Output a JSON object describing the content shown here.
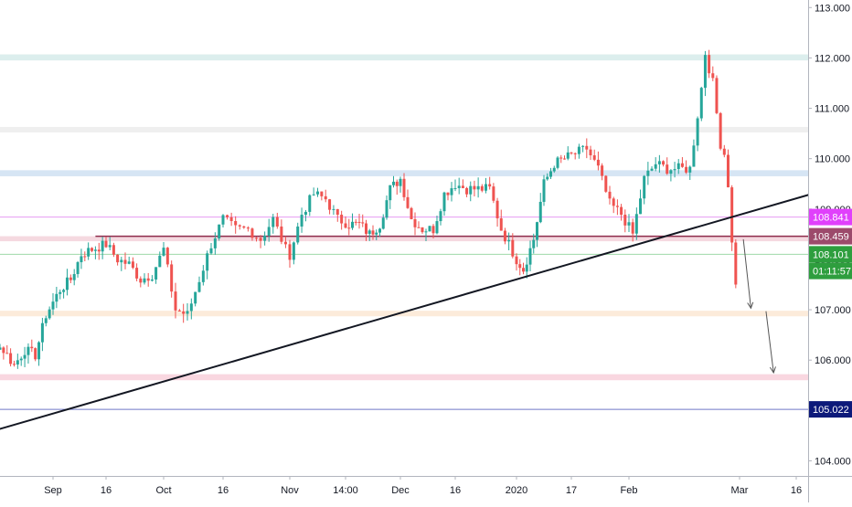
{
  "chart_data": {
    "type": "candlestick",
    "title": "",
    "y_axis": {
      "side": "right",
      "range": [
        103.7,
        113.15
      ],
      "ticks": [
        "104.000",
        "105.000",
        "106.000",
        "107.000",
        "108.000",
        "109.000",
        "110.000",
        "111.000",
        "112.000",
        "113.000"
      ],
      "tick_values": [
        104,
        105,
        106,
        107,
        108,
        109,
        110,
        111,
        112,
        113
      ]
    },
    "x_axis": {
      "ticks": [
        {
          "label": "Sep",
          "date": "2019-09-01"
        },
        {
          "label": "16",
          "date": "2019-09-16"
        },
        {
          "label": "Oct",
          "date": "2019-10-01"
        },
        {
          "label": "16",
          "date": "2019-10-16"
        },
        {
          "label": "Nov",
          "date": "2019-11-01"
        },
        {
          "label": "14:00",
          "date": "2019-11-15"
        },
        {
          "label": "Dec",
          "date": "2019-12-01"
        },
        {
          "label": "16",
          "date": "2019-12-16"
        },
        {
          "label": "2020",
          "date": "2020-01-01"
        },
        {
          "label": "17",
          "date": "2020-01-17"
        },
        {
          "label": "Feb",
          "date": "2020-02-01"
        },
        {
          "label": "Mar",
          "date": "2020-03-01"
        },
        {
          "label": "16",
          "date": "2020-03-16"
        }
      ]
    },
    "grid": false,
    "colors": {
      "up": "#26a69a",
      "down": "#ef5350",
      "trendline": "#131722",
      "resistance": "#8e2c4c",
      "arrow": "#555555",
      "axis_text": "#131722",
      "axis_border": "#b2b5be"
    },
    "price_labels": [
      {
        "value": 108.841,
        "text": "108.841",
        "color": "#e040fb",
        "text_color": "#ffffff"
      },
      {
        "value": 108.459,
        "text": "108.459",
        "color": "#9c4a6b",
        "text_color": "#ffffff"
      },
      {
        "value": 108.101,
        "text": "108.101",
        "color": "#2e9e3e",
        "text_color": "#ffffff"
      },
      {
        "value": 107.77,
        "text": "01:11:57",
        "color": "#2e9e3e",
        "text_color": "#ffffff"
      },
      {
        "value": 105.022,
        "text": "105.022",
        "color": "#0d1a7a",
        "text_color": "#ffffff"
      }
    ],
    "zones": [
      {
        "low": 111.95,
        "high": 112.07,
        "color": "#d6ebea"
      },
      {
        "low": 110.52,
        "high": 110.63,
        "color": "#ececec"
      },
      {
        "low": 109.65,
        "high": 109.77,
        "color": "#cfe0f2"
      },
      {
        "low": 108.36,
        "high": 108.46,
        "color": "#f3d2da"
      },
      {
        "low": 106.87,
        "high": 106.98,
        "color": "#fbe7d4"
      },
      {
        "low": 105.6,
        "high": 105.72,
        "color": "#f8d0da"
      }
    ],
    "horizontal_lines": [
      {
        "value": 108.841,
        "color": "#e79cf2",
        "width": 1
      },
      {
        "value": 108.101,
        "color": "#9fd9a8",
        "width": 1
      },
      {
        "value": 105.022,
        "color": "#6f78c8",
        "width": 1
      },
      {
        "value": 108.459,
        "color": "#8e2c4c",
        "width": 1.6,
        "from_date": "2019-09-13"
      }
    ],
    "trendline": {
      "from": {
        "date": "2019-08-03",
        "value": 104.35
      },
      "to": {
        "date": "2020-03-27",
        "value": 109.45
      }
    },
    "arrows": [
      {
        "from": {
          "date": "2020-03-02",
          "value": 108.4
        },
        "to": {
          "date": "2020-03-04",
          "value": 107.03
        }
      },
      {
        "from": {
          "date": "2020-03-08",
          "value": 106.97
        },
        "to": {
          "date": "2020-03-10",
          "value": 105.75
        }
      }
    ],
    "close_series": [
      [
        "2019-08-03",
        106.6
      ],
      [
        "2019-08-06",
        106.3
      ],
      [
        "2019-08-09",
        106.0
      ],
      [
        "2019-08-12",
        105.3
      ],
      [
        "2019-08-14",
        106.4
      ],
      [
        "2019-08-18",
        106.2
      ],
      [
        "2019-08-21",
        105.9
      ],
      [
        "2019-08-24",
        106.2
      ],
      [
        "2019-08-27",
        106.1
      ],
      [
        "2019-08-30",
        106.9
      ],
      [
        "2019-09-03",
        107.4
      ],
      [
        "2019-09-06",
        107.6
      ],
      [
        "2019-09-09",
        108.1
      ],
      [
        "2019-09-12",
        108.2
      ],
      [
        "2019-09-16",
        108.3
      ],
      [
        "2019-09-19",
        108.0
      ],
      [
        "2019-09-22",
        107.9
      ],
      [
        "2019-09-25",
        107.6
      ],
      [
        "2019-09-28",
        107.7
      ],
      [
        "2019-10-01",
        108.2
      ],
      [
        "2019-10-04",
        107.0
      ],
      [
        "2019-10-07",
        106.9
      ],
      [
        "2019-10-10",
        107.6
      ],
      [
        "2019-10-13",
        108.3
      ],
      [
        "2019-10-16",
        108.8
      ],
      [
        "2019-10-19",
        108.6
      ],
      [
        "2019-10-22",
        108.6
      ],
      [
        "2019-10-25",
        108.4
      ],
      [
        "2019-10-28",
        108.8
      ],
      [
        "2019-10-31",
        108.2
      ],
      [
        "2019-11-01",
        108.1
      ],
      [
        "2019-11-04",
        108.9
      ],
      [
        "2019-11-07",
        109.3
      ],
      [
        "2019-11-10",
        109.2
      ],
      [
        "2019-11-13",
        108.8
      ],
      [
        "2019-11-16",
        108.7
      ],
      [
        "2019-11-19",
        108.7
      ],
      [
        "2019-11-22",
        108.5
      ],
      [
        "2019-11-25",
        108.7
      ],
      [
        "2019-11-28",
        109.4
      ],
      [
        "2019-12-01",
        109.6
      ],
      [
        "2019-12-04",
        108.8
      ],
      [
        "2019-12-07",
        108.6
      ],
      [
        "2019-12-10",
        108.6
      ],
      [
        "2019-12-13",
        109.3
      ],
      [
        "2019-12-16",
        109.5
      ],
      [
        "2019-12-19",
        109.4
      ],
      [
        "2019-12-22",
        109.4
      ],
      [
        "2019-12-25",
        109.4
      ],
      [
        "2019-12-28",
        108.6
      ],
      [
        "2020-01-01",
        108.0
      ],
      [
        "2020-01-03",
        107.8
      ],
      [
        "2020-01-06",
        108.4
      ],
      [
        "2020-01-09",
        109.5
      ],
      [
        "2020-01-12",
        109.9
      ],
      [
        "2020-01-15",
        110.0
      ],
      [
        "2020-01-18",
        110.1
      ],
      [
        "2020-01-21",
        110.2
      ],
      [
        "2020-01-24",
        109.8
      ],
      [
        "2020-01-27",
        109.1
      ],
      [
        "2020-01-30",
        108.9
      ],
      [
        "2020-02-02",
        108.5
      ],
      [
        "2020-02-05",
        109.6
      ],
      [
        "2020-02-08",
        109.9
      ],
      [
        "2020-02-11",
        109.8
      ],
      [
        "2020-02-14",
        109.8
      ],
      [
        "2020-02-17",
        109.8
      ],
      [
        "2020-02-20",
        111.4
      ],
      [
        "2020-02-21",
        112.1
      ],
      [
        "2020-02-23",
        111.5
      ],
      [
        "2020-02-25",
        110.3
      ],
      [
        "2020-02-26",
        110.1
      ],
      [
        "2020-02-27",
        109.5
      ],
      [
        "2020-02-28",
        108.3
      ],
      [
        "2020-02-29",
        107.5
      ]
    ]
  }
}
